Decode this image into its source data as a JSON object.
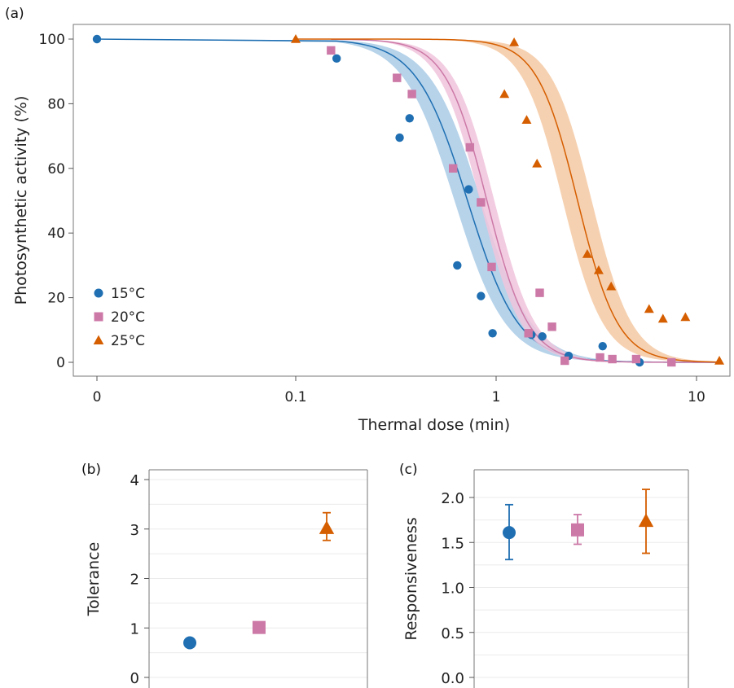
{
  "colors": {
    "c15": "#1f6fb2",
    "c15_band": "#a9cbe6",
    "c20": "#cc79a7",
    "c20_band": "#f0c4dc",
    "c25": "#d55e00",
    "c25_band": "#f5c9a3",
    "grid": "#ebebeb",
    "frame": "#777777"
  },
  "chart_data": [
    {
      "panel": "(a)",
      "type": "scatter",
      "xlabel": "Thermal dose (min)",
      "ylabel": "Photosynthetic activity (%)",
      "xscale": "log (with 0 shown at left)",
      "xticks": [
        "0",
        "0.1",
        "1",
        "10"
      ],
      "yticks": [
        "0",
        "20",
        "40",
        "60",
        "80",
        "100"
      ],
      "ylim": [
        -3,
        104
      ],
      "grid": false,
      "legend_position": "bottom-left",
      "series": [
        {
          "name": "15°C",
          "color": "#1f6fb2",
          "marker": "circle",
          "x": [
            0,
            0.16,
            0.33,
            0.37,
            0.64,
            0.73,
            0.84,
            0.96,
            1.5,
            1.7,
            2.3,
            3.4,
            5.2
          ],
          "y": [
            100,
            94,
            69.5,
            75.5,
            30,
            53.5,
            20.5,
            9,
            8.5,
            8,
            2,
            5,
            0
          ],
          "fit_t50": 0.72,
          "fit_slope": 3.4,
          "band_lo": 0.62,
          "band_hi": 0.84
        },
        {
          "name": "20°C",
          "color": "#cc79a7",
          "marker": "square",
          "x": [
            0.15,
            0.32,
            0.38,
            0.61,
            0.74,
            0.84,
            0.95,
            1.45,
            1.65,
            1.9,
            2.2,
            3.3,
            3.8,
            5.0,
            7.5
          ],
          "y": [
            96.5,
            88,
            83,
            60,
            66.5,
            49.5,
            29.5,
            9,
            21.5,
            11,
            0.5,
            1.5,
            1,
            1,
            0
          ],
          "fit_t50": 0.9,
          "fit_slope": 4.2,
          "band_lo": 0.83,
          "band_hi": 0.98
        },
        {
          "name": "25°C",
          "color": "#d55e00",
          "marker": "triangle",
          "x": [
            0.1,
            1.1,
            1.23,
            1.42,
            1.6,
            2.85,
            3.25,
            3.75,
            5.8,
            6.8,
            8.8,
            13
          ],
          "y": [
            100,
            83,
            99,
            75,
            61.5,
            33.5,
            28.5,
            23.5,
            16.5,
            13.5,
            14,
            0.5
          ],
          "fit_t50": 2.55,
          "fit_slope": 4.3,
          "band_lo": 2.15,
          "band_hi": 3.0
        }
      ]
    },
    {
      "panel": "(b)",
      "type": "scatter",
      "ylabel": "Tolerance",
      "yticks": [
        "0",
        "1",
        "2",
        "3",
        "4"
      ],
      "ylim": [
        -0.05,
        4.05
      ],
      "grid": true,
      "points": [
        {
          "group": "15°C",
          "value": 0.7,
          "err_lo": 0.7,
          "err_hi": 0.7,
          "marker": "circle",
          "color": "#1f6fb2"
        },
        {
          "group": "20°C",
          "value": 1.01,
          "err_lo": 1.01,
          "err_hi": 1.01,
          "marker": "square",
          "color": "#cc79a7"
        },
        {
          "group": "25°C",
          "value": 3.02,
          "err_lo": 2.77,
          "err_hi": 3.33,
          "marker": "triangle",
          "color": "#d55e00"
        }
      ]
    },
    {
      "panel": "(c)",
      "type": "scatter",
      "ylabel": "Responsiveness",
      "yticks": [
        "0.0",
        "0.5",
        "1.0",
        "1.5",
        "2.0"
      ],
      "ylim": [
        -0.02,
        2.15
      ],
      "grid": true,
      "points": [
        {
          "group": "15°C",
          "value": 1.61,
          "err_lo": 1.31,
          "err_hi": 1.92,
          "marker": "circle",
          "color": "#1f6fb2"
        },
        {
          "group": "20°C",
          "value": 1.64,
          "err_lo": 1.48,
          "err_hi": 1.81,
          "marker": "square",
          "color": "#cc79a7"
        },
        {
          "group": "25°C",
          "value": 1.74,
          "err_lo": 1.38,
          "err_hi": 2.09,
          "marker": "triangle",
          "color": "#d55e00"
        }
      ]
    }
  ]
}
